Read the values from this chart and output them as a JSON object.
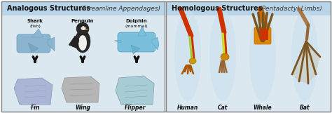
{
  "title_left": "Analogous Structures",
  "subtitle_left": "(Streamline Appendages)",
  "title_right": "Homologous Structures",
  "subtitle_right": "(Pentadactyl Limbs)",
  "left_animal_names": [
    "Shark",
    "Penguin",
    "Dolphin"
  ],
  "left_animal_subs": [
    "(fish)",
    "(bird)",
    "(mammal)"
  ],
  "left_labels": [
    "Fin",
    "Wing",
    "Flipper"
  ],
  "right_labels": [
    "Human",
    "Cat",
    "Whale",
    "Bat"
  ],
  "panel_left_bg": "#dce8f0",
  "panel_right_bg": "#dce8f0",
  "header_bg": "#b8d4e8",
  "border_color": "#888888",
  "shark_color": "#8ab4cf",
  "dolphin_color": "#7ac0dc",
  "penguin_body": "#2a2a2a",
  "penguin_belly": "#f0f0f0",
  "fin_color": "#aab8d8",
  "wing_color": "#b8b8b8",
  "flipper_color": "#a8ccd8",
  "bone_red": "#cc3300",
  "bone_orange": "#ee7700",
  "bone_yellow": "#ddcc00",
  "bone_brown": "#996633",
  "bone_tan": "#aa8844",
  "limb_bg": "#c8e0ee",
  "fig_width": 4.74,
  "fig_height": 1.61,
  "dpi": 100
}
